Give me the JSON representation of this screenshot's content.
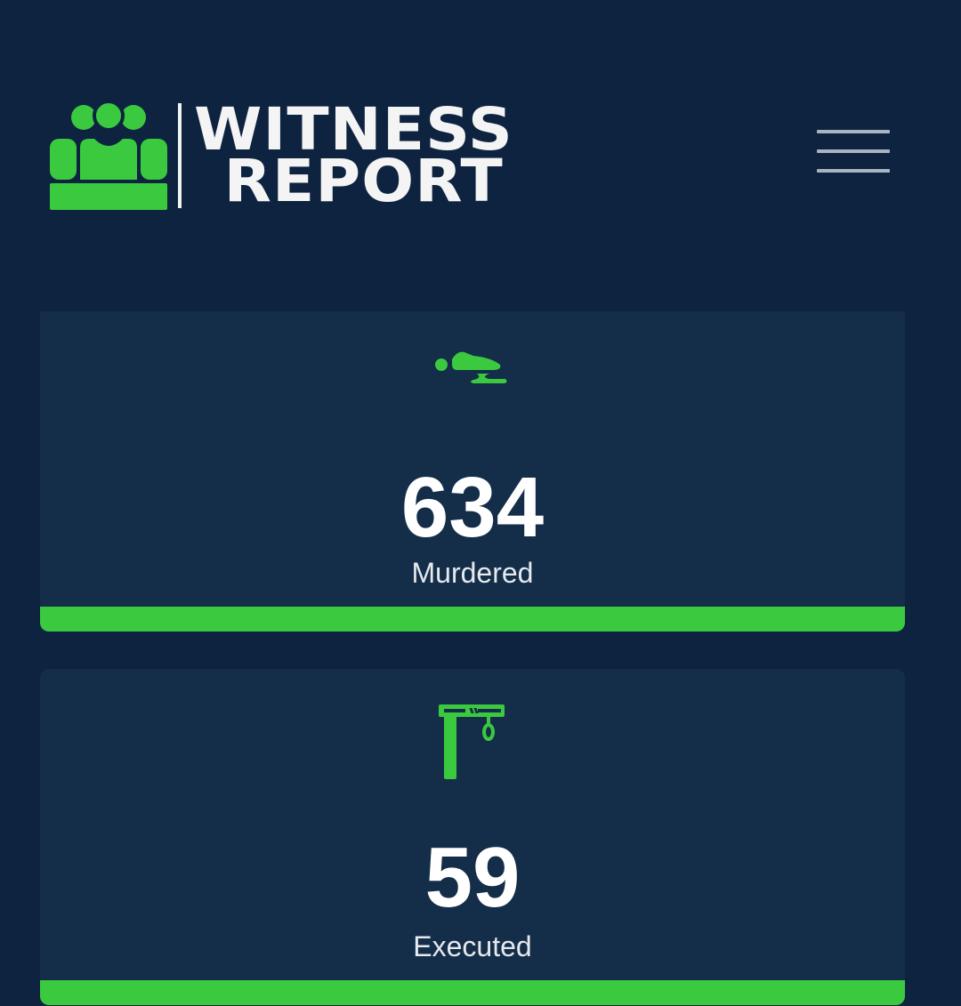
{
  "header": {
    "logo": {
      "line1": "WITNESS",
      "line2": "REPORT",
      "icon": "people-group-icon"
    },
    "menu_icon": "hamburger-menu-icon"
  },
  "colors": {
    "background": "#0d2340",
    "card": "#142d48",
    "accent": "#3ac93f"
  },
  "stats": [
    {
      "icon": "murdered-body-icon",
      "value": "634",
      "label": "Murdered"
    },
    {
      "icon": "gallows-icon",
      "value": "59",
      "label": "Executed"
    }
  ]
}
